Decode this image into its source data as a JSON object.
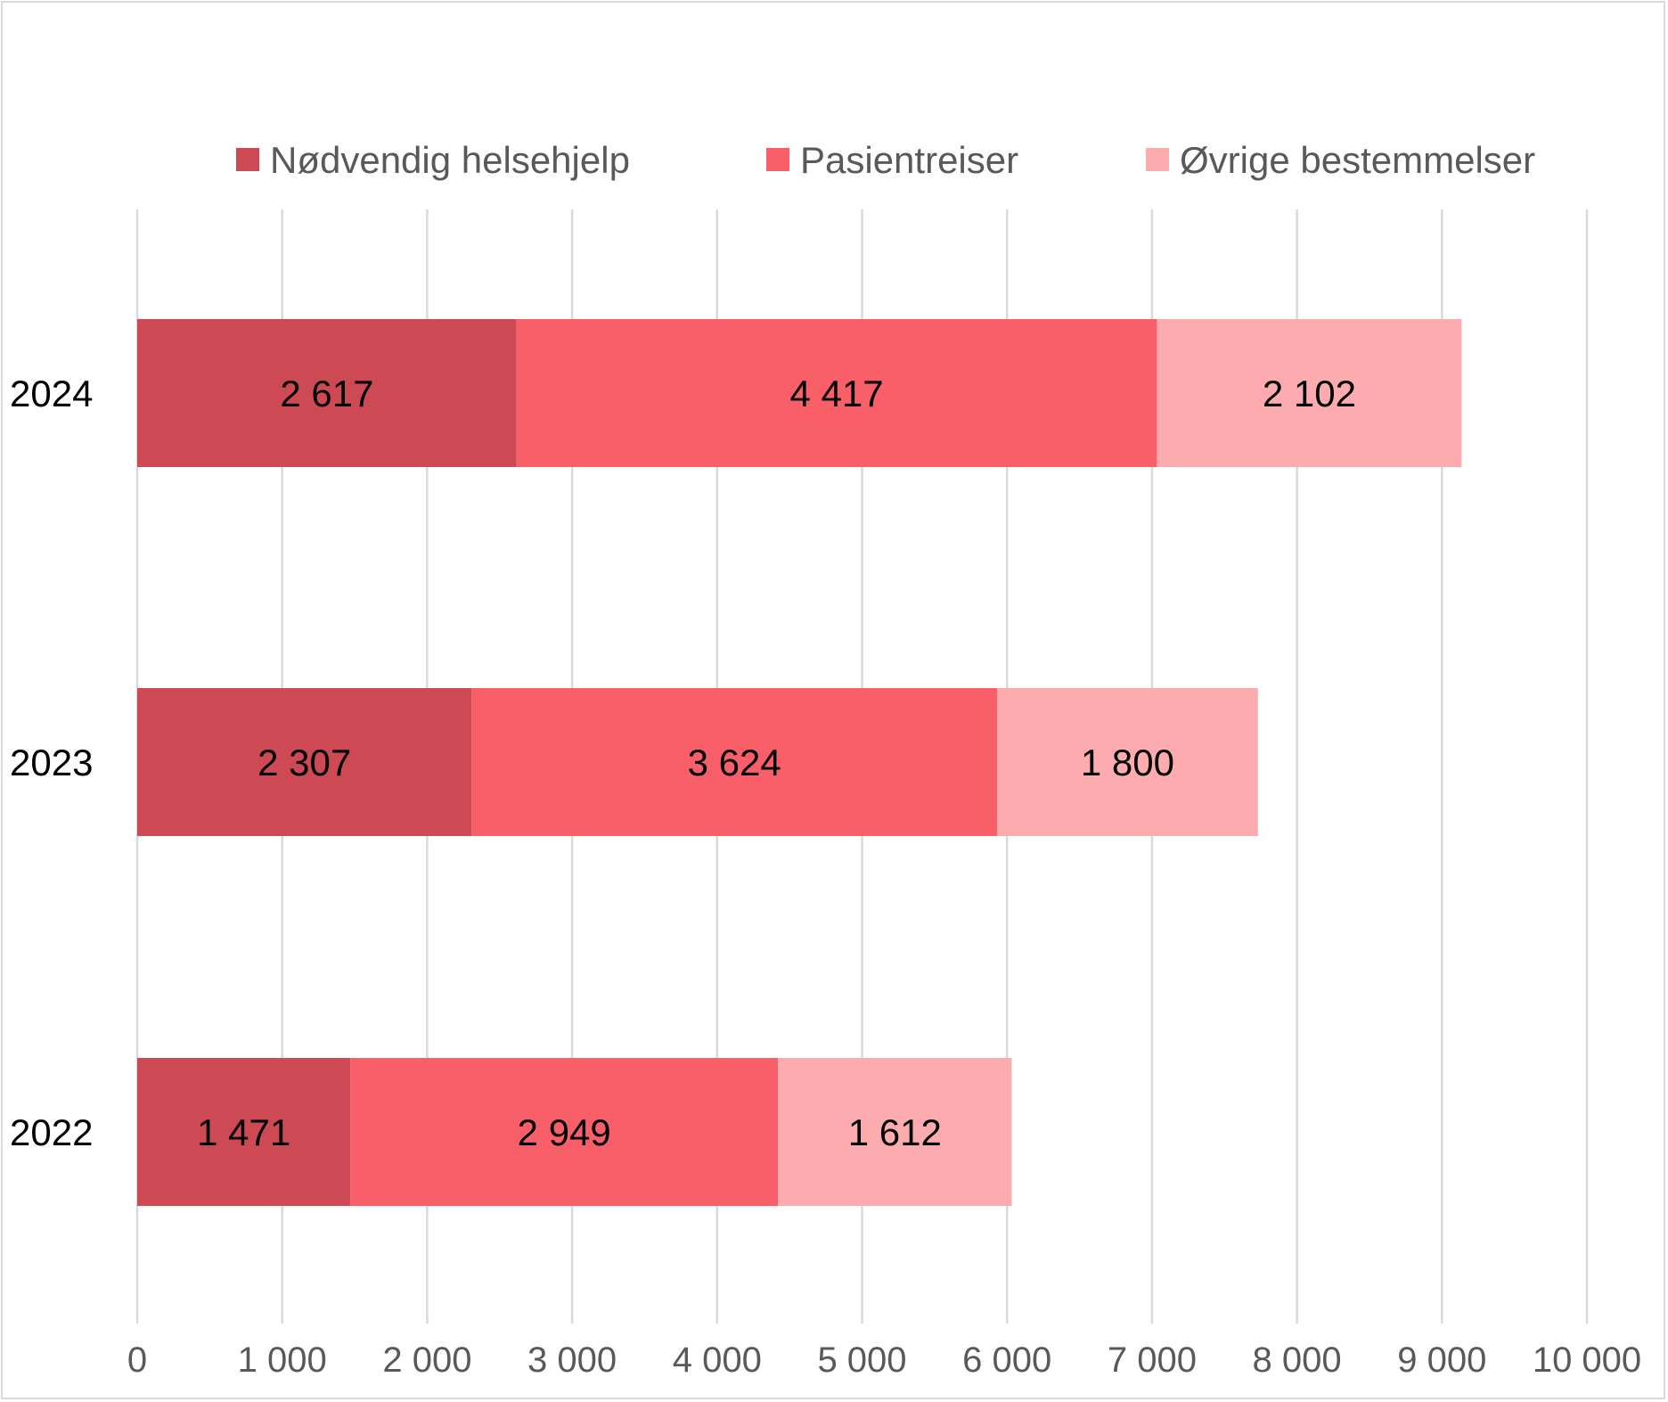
{
  "chart_data": {
    "type": "bar",
    "orientation": "horizontal",
    "stacked": true,
    "categories": [
      "2024",
      "2023",
      "2022"
    ],
    "series": [
      {
        "name": "Nødvendig helsehjelp",
        "color": "#cd4a54",
        "values": [
          2617,
          2307,
          1471
        ],
        "labels": [
          "2 617",
          "2 307",
          "1 471"
        ]
      },
      {
        "name": "Pasientreiser",
        "color": "#f95f69",
        "values": [
          4417,
          3624,
          2949
        ],
        "labels": [
          "4 417",
          "3 624",
          "2 949"
        ]
      },
      {
        "name": "Øvrige bestemmelser",
        "color": "#fcacaf",
        "values": [
          2102,
          1800,
          1612
        ],
        "labels": [
          "2 102",
          "1 800",
          "1 612"
        ]
      }
    ],
    "xlim": [
      0,
      10000
    ],
    "xticks": [
      0,
      1000,
      2000,
      3000,
      4000,
      5000,
      6000,
      7000,
      8000,
      9000,
      10000
    ],
    "xtick_labels": [
      "0",
      "1 000",
      "2 000",
      "3 000",
      "4 000",
      "5 000",
      "6 000",
      "7 000",
      "8 000",
      "9 000",
      "10 000"
    ],
    "grid": true,
    "legend": "top",
    "title": "",
    "xlabel": "",
    "ylabel": ""
  }
}
